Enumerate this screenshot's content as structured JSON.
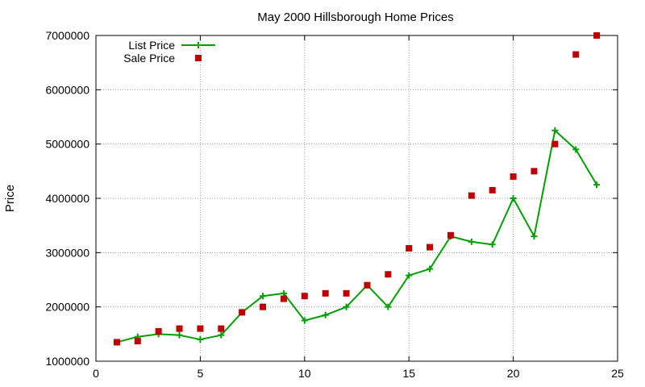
{
  "chart_data": {
    "type": "line",
    "title": "May 2000 Hillsborough Home Prices",
    "xlabel": "",
    "ylabel": "Price",
    "xlim": [
      0,
      25
    ],
    "ylim": [
      1000000,
      7000000
    ],
    "x_ticks": [
      0,
      5,
      10,
      15,
      20,
      25
    ],
    "y_ticks": [
      1000000,
      2000000,
      3000000,
      4000000,
      5000000,
      6000000,
      7000000
    ],
    "x_tick_labels": [
      "0",
      "5",
      "10",
      "15",
      "20",
      "25"
    ],
    "y_tick_labels": [
      "1000000",
      "2000000",
      "3000000",
      "4000000",
      "5000000",
      "6000000",
      "7000000"
    ],
    "grid": true,
    "legend_position": "top-left",
    "series": [
      {
        "name": "List Price",
        "kind": "line",
        "marker": "plus",
        "color": "#00a000",
        "x": [
          1,
          2,
          3,
          4,
          5,
          6,
          7,
          8,
          9,
          10,
          11,
          12,
          13,
          14,
          15,
          16,
          17,
          18,
          19,
          20,
          21,
          22,
          23,
          24
        ],
        "values": [
          1350000,
          1450000,
          1500000,
          1480000,
          1400000,
          1480000,
          1900000,
          2200000,
          2250000,
          1750000,
          1850000,
          2000000,
          2400000,
          2000000,
          2580000,
          2700000,
          3300000,
          3200000,
          3150000,
          4000000,
          3300000,
          5250000,
          4900000,
          4250000
        ]
      },
      {
        "name": "Sale Price",
        "kind": "scatter",
        "marker": "square",
        "color": "#c00000",
        "x": [
          1,
          2,
          3,
          4,
          5,
          6,
          7,
          8,
          9,
          10,
          11,
          12,
          13,
          14,
          15,
          16,
          17,
          18,
          19,
          20,
          21,
          22,
          23,
          24
        ],
        "values": [
          1350000,
          1370000,
          1550000,
          1600000,
          1600000,
          1600000,
          1900000,
          2000000,
          2150000,
          2200000,
          2250000,
          2250000,
          2400000,
          2600000,
          3080000,
          3100000,
          3320000,
          4050000,
          4150000,
          4400000,
          4500000,
          5000000,
          6650000,
          7000000
        ]
      }
    ]
  }
}
